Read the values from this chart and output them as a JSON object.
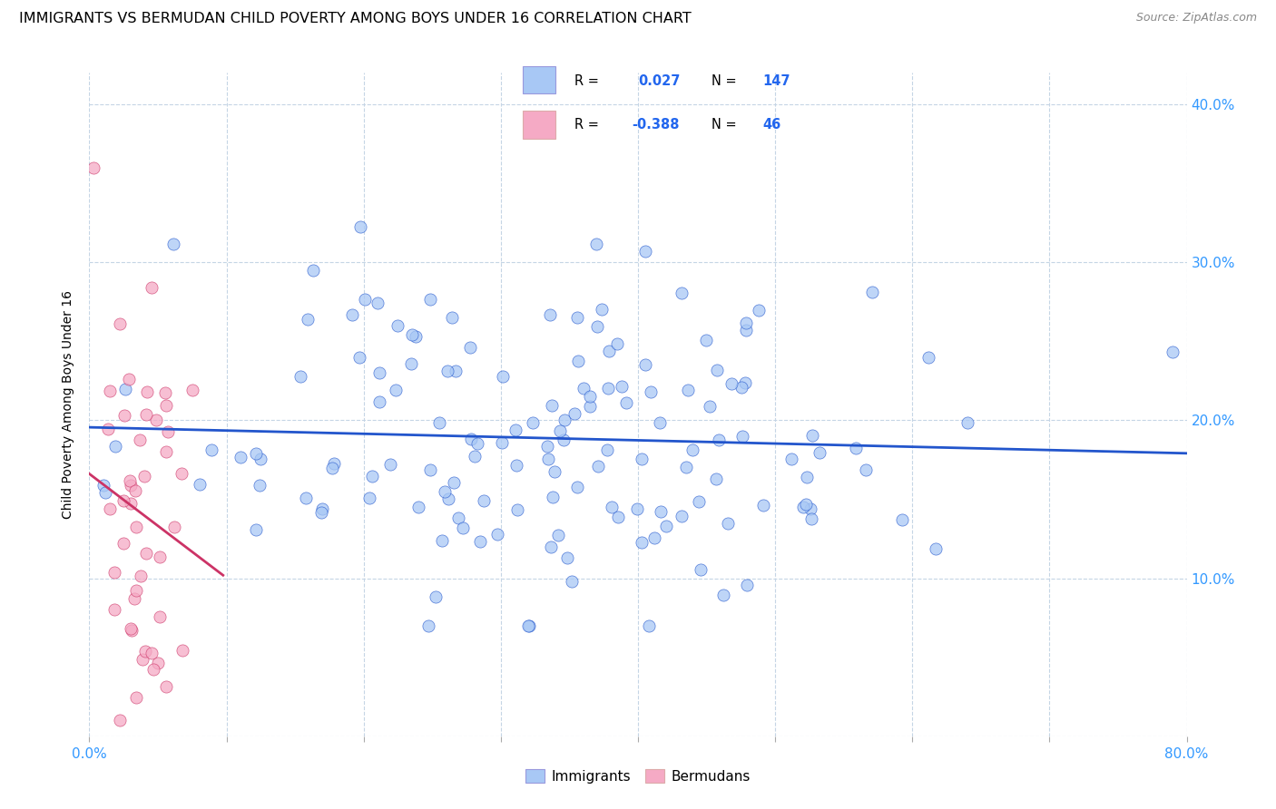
{
  "title": "IMMIGRANTS VS BERMUDAN CHILD POVERTY AMONG BOYS UNDER 16 CORRELATION CHART",
  "source": "Source: ZipAtlas.com",
  "ylabel": "Child Poverty Among Boys Under 16",
  "xlim": [
    0.0,
    0.8
  ],
  "ylim": [
    0.0,
    0.42
  ],
  "xtick_positions": [
    0.0,
    0.1,
    0.2,
    0.3,
    0.4,
    0.5,
    0.6,
    0.7,
    0.8
  ],
  "ytick_positions": [
    0.0,
    0.1,
    0.2,
    0.3,
    0.4
  ],
  "immigrants_color": "#a8c8f5",
  "bermudans_color": "#f5aac5",
  "line_color_immigrants": "#2255cc",
  "line_color_bermudans": "#cc3366",
  "immigrants_R": 0.027,
  "immigrants_N": 147,
  "bermudans_R": -0.388,
  "bermudans_N": 46,
  "title_fontsize": 11.5,
  "axis_fontsize": 11,
  "legend_fontsize": 11,
  "marker_size": 90,
  "marker_alpha": 0.75,
  "marker_linewidth": 0.5,
  "grid_color": "#c5d5e5",
  "grid_linestyle": "--",
  "grid_linewidth": 0.8,
  "trend_linewidth": 2.0
}
